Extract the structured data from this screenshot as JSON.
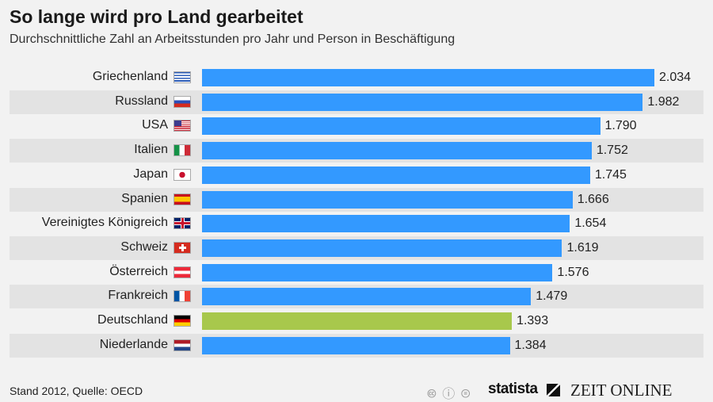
{
  "chart_data": {
    "type": "bar",
    "orientation": "horizontal",
    "title": "So lange wird pro Land gearbeitet",
    "subtitle": "Durchschnittliche Zahl an Arbeitsstunden pro Jahr und Person in Beschäftigung",
    "categories": [
      "Griechenland",
      "Russland",
      "USA",
      "Italien",
      "Japan",
      "Spanien",
      "Vereinigtes Königreich",
      "Schweiz",
      "Österreich",
      "Frankreich",
      "Deutschland",
      "Niederlande"
    ],
    "values": [
      2034,
      1982,
      1790,
      1752,
      1745,
      1666,
      1654,
      1619,
      1576,
      1479,
      1393,
      1384
    ],
    "value_labels": [
      "2.034",
      "1.982",
      "1.790",
      "1.752",
      "1.745",
      "1.666",
      "1.654",
      "1.619",
      "1.576",
      "1.479",
      "1.393",
      "1.384"
    ],
    "flags": [
      "gr",
      "ru",
      "us",
      "it",
      "jp",
      "es",
      "gb",
      "ch",
      "at",
      "fr",
      "de",
      "nl"
    ],
    "highlight": "Deutschland",
    "colors": {
      "bar": "#3399ff",
      "highlight": "#a8c84c"
    },
    "xlim": [
      0,
      2034
    ]
  },
  "footer": {
    "source": "Stand 2012, Quelle: OECD",
    "cc": "🅭 ⓘ ⊜",
    "statista": "statista",
    "zeit": "ZEIT ONLINE"
  }
}
